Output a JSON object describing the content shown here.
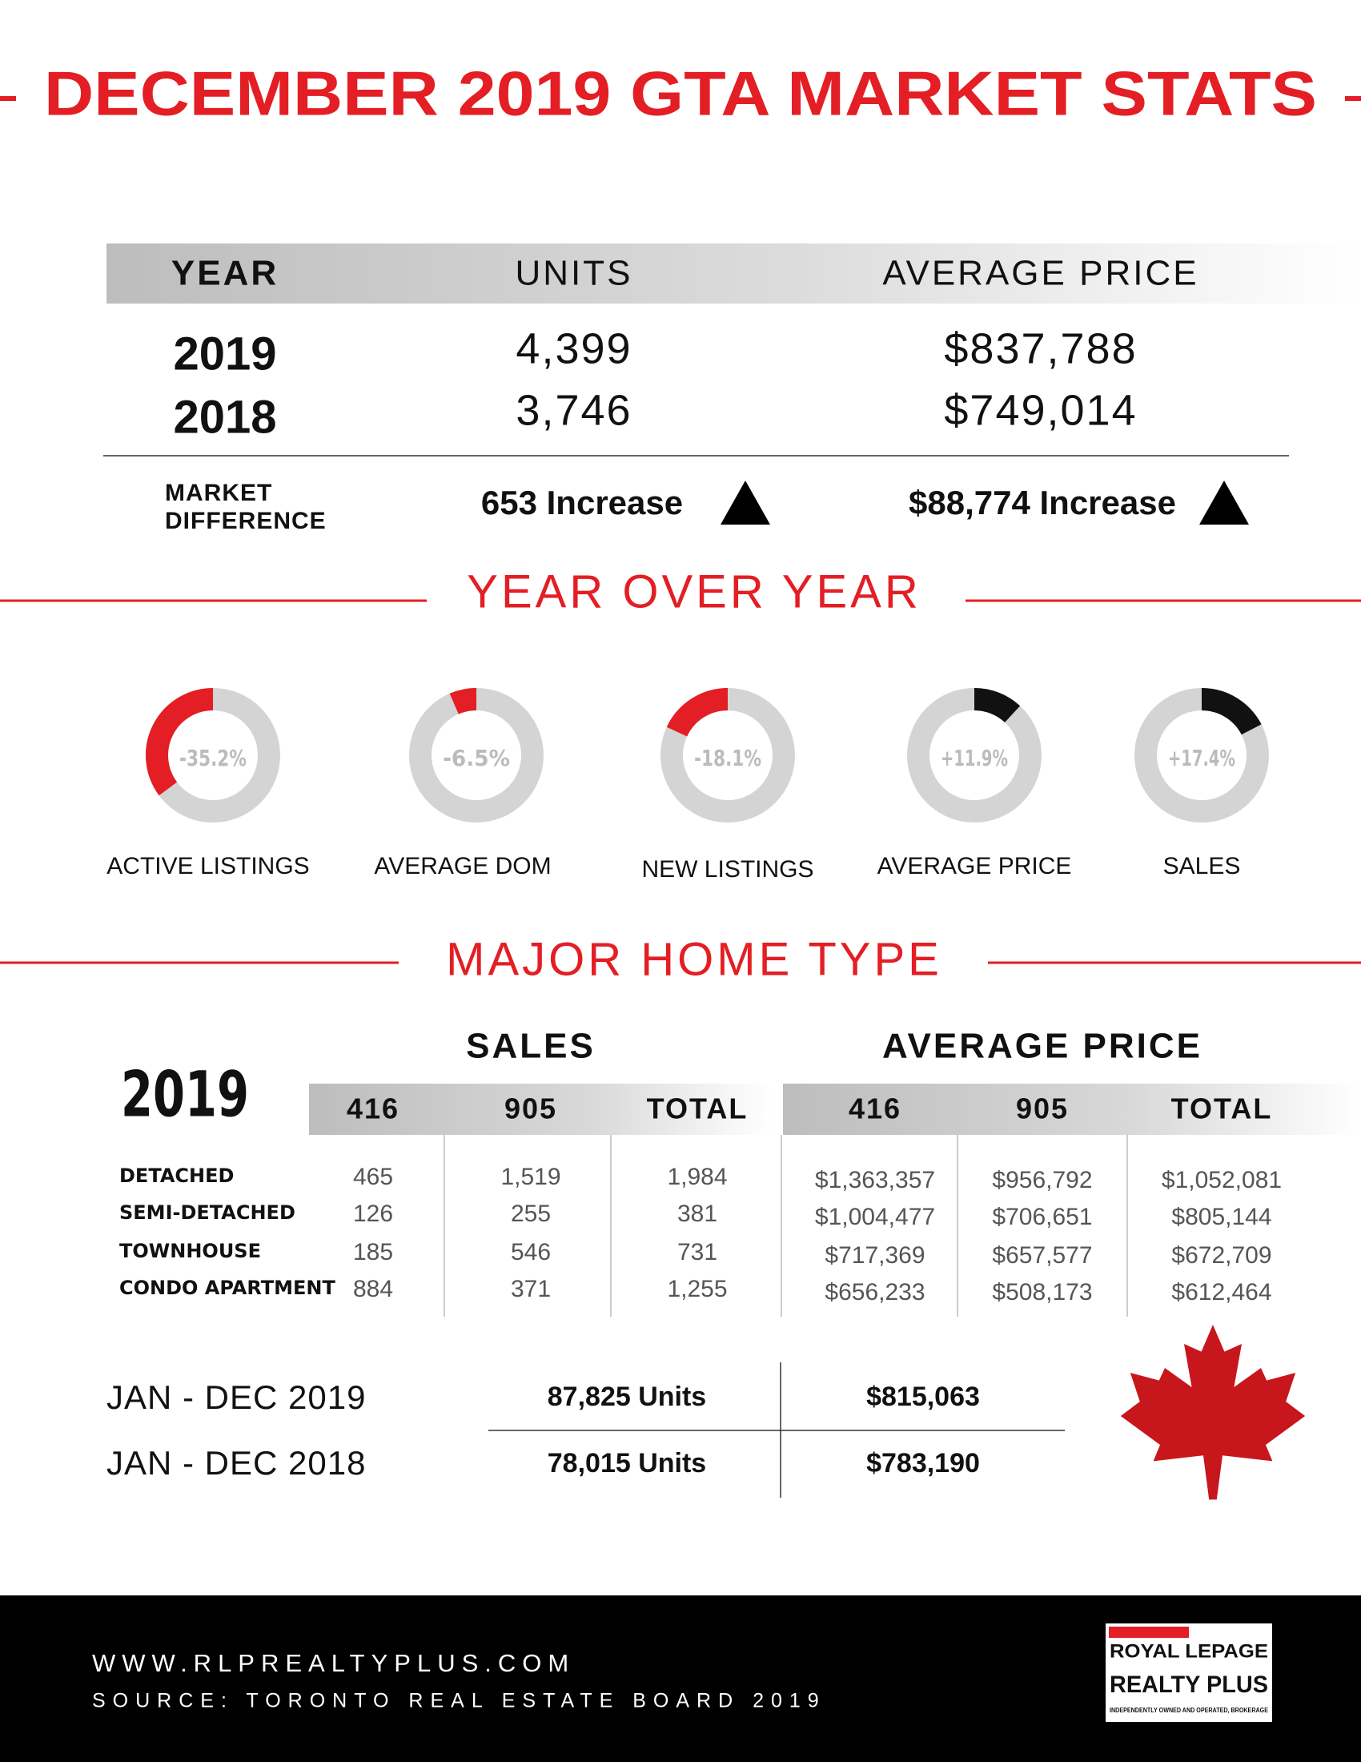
{
  "header": {
    "title": "DECEMBER 2019 GTA MARKET STATS"
  },
  "summary": {
    "columns": [
      "YEAR",
      "UNITS",
      "AVERAGE PRICE"
    ],
    "rows": [
      [
        "2019",
        "4,399",
        "$837,788"
      ],
      [
        "2018",
        "3,746",
        "$749,014"
      ]
    ],
    "difference_label": [
      "MARKET",
      "DIFFERENCE"
    ],
    "difference": [
      "653 Increase",
      "$88,774 Increase"
    ]
  },
  "chart_data": {
    "type": "donut",
    "title": "YEAR OVER YEAR",
    "categories": [
      "ACTIVE LISTINGS",
      "AVERAGE DOM",
      "NEW LISTINGS",
      "AVERAGE PRICE",
      "SALES"
    ],
    "values": [
      -35.2,
      -6.5,
      -18.1,
      11.9,
      17.4
    ],
    "value_labels": [
      "-35.2%",
      "-6.5%",
      "-18.1%",
      "+11.9%",
      "+17.4%"
    ],
    "colors": [
      "#e31e24",
      "#e31e24",
      "#e31e24",
      "#111111",
      "#111111"
    ],
    "track_color": "#d4d4d4"
  },
  "home_type": {
    "title": "MAJOR HOME TYPE",
    "year": "2019",
    "sales_title": "SALES",
    "price_title": "AVERAGE PRICE",
    "sales_columns": [
      "416",
      "905",
      "TOTAL"
    ],
    "price_columns": [
      "416",
      "905",
      "TOTAL"
    ],
    "rows": [
      {
        "type": "DETACHED",
        "sales": [
          "465",
          "1,519",
          "1,984"
        ],
        "prices": [
          "$1,363,357",
          "$956,792",
          "$1,052,081"
        ]
      },
      {
        "type": "SEMI-DETACHED",
        "sales": [
          "126",
          "255",
          "381"
        ],
        "prices": [
          "$1,004,477",
          "$706,651",
          "$805,144"
        ]
      },
      {
        "type": "TOWNHOUSE",
        "sales": [
          "185",
          "546",
          "731"
        ],
        "prices": [
          "$717,369",
          "$657,577",
          "$672,709"
        ]
      },
      {
        "type": "CONDO APARTMENT",
        "sales": [
          "884",
          "371",
          "1,255"
        ],
        "prices": [
          "$656,233",
          "$508,173",
          "$612,464"
        ]
      }
    ]
  },
  "annual": {
    "rows": [
      {
        "period": "JAN - DEC  2019",
        "units": "87,825 Units",
        "price": "$815,063"
      },
      {
        "period": "JAN - DEC  2018",
        "units": "78,015 Units",
        "price": "$783,190"
      }
    ]
  },
  "footer": {
    "website": "WWW.RLPREALTYPLUS.COM",
    "source": "SOURCE: TORONTO REAL ESTATE BOARD 2019",
    "logo_top": "ROYAL LEPAGE",
    "logo_bottom": "REALTY PLUS",
    "logo_tagline": "INDEPENDENTLY OWNED AND OPERATED, BROKERAGE"
  }
}
